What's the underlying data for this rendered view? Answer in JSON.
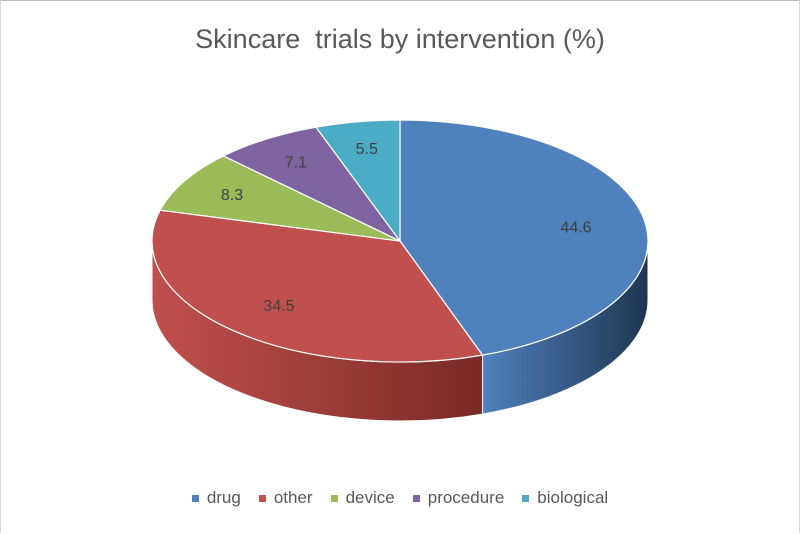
{
  "chart_data": {
    "type": "pie",
    "title": "Skincare  trials by intervention (%)",
    "categories": [
      "drug",
      "other",
      "device",
      "procedure",
      "biological"
    ],
    "values": [
      44.6,
      34.5,
      8.3,
      7.1,
      5.5
    ],
    "colors": [
      "#4f81bd",
      "#c0504d",
      "#9bbb59",
      "#8064a2",
      "#4bacc6"
    ],
    "side_colors": [
      "#1f3552",
      "#7a2a28",
      "#5e7a30",
      "#4d3868",
      "#2a7486"
    ],
    "data_labels": [
      "44.6",
      "34.5",
      "8.3",
      "7.1",
      "5.5"
    ],
    "legend": {
      "position": "bottom",
      "items": [
        "drug",
        "other",
        "device",
        "procedure",
        "biological"
      ]
    }
  }
}
